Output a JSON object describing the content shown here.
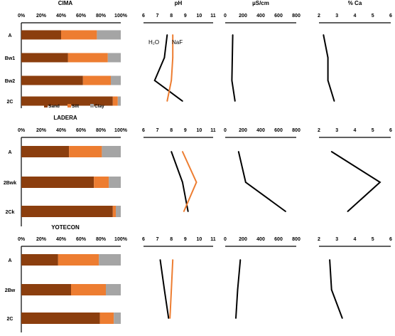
{
  "chart_data": [
    {
      "type": "bar",
      "orientation": "horizontal",
      "stacked": true,
      "panel": "texture",
      "site": 0,
      "title": "CIMA",
      "xlim": [
        0,
        100
      ],
      "xticks": [
        "0%",
        "20%",
        "40%",
        "60%",
        "80%",
        "100%"
      ],
      "categories": [
        "A",
        "Bw1",
        "Bw2",
        "2C"
      ],
      "series": [
        {
          "name": "Sand",
          "color": "#8B3E0E",
          "values": [
            40,
            47,
            62,
            92
          ]
        },
        {
          "name": "Silt",
          "color": "#ED7D31",
          "values": [
            36,
            40,
            28,
            5
          ]
        },
        {
          "name": "Clay",
          "color": "#A5A5A5",
          "values": [
            24,
            13,
            10,
            3
          ]
        }
      ],
      "legend": {
        "position": "bottom",
        "labels": [
          "Sand",
          "Silt",
          "Clay"
        ]
      }
    },
    {
      "type": "line",
      "panel": "pH",
      "site": 0,
      "title": "pH",
      "xlim": [
        6,
        11
      ],
      "xticks": [
        "6",
        "7",
        "8",
        "9",
        "10",
        "11"
      ],
      "categories": [
        "A",
        "Bw1",
        "Bw2",
        "2C"
      ],
      "series": [
        {
          "name": "H₂O",
          "color": "#000000",
          "values": [
            7.7,
            7.5,
            6.8,
            8.8
          ]
        },
        {
          "name": "NaF",
          "color": "#ED7D31",
          "values": [
            8.1,
            8.1,
            8.0,
            7.7
          ]
        }
      ]
    },
    {
      "type": "line",
      "panel": "EC",
      "site": 0,
      "title": "µS/cm",
      "xlim": [
        0,
        800
      ],
      "xticks": [
        "0",
        "200",
        "400",
        "600",
        "800"
      ],
      "categories": [
        "A",
        "Bw1",
        "Bw2",
        "2C"
      ],
      "series": [
        {
          "color": "#000000",
          "values": [
            85,
            80,
            75,
            110
          ]
        }
      ]
    },
    {
      "type": "line",
      "panel": "Ca",
      "site": 0,
      "title": "% Ca",
      "xlim": [
        2,
        6
      ],
      "xticks": [
        "2",
        "3",
        "4",
        "5",
        "6"
      ],
      "categories": [
        "A",
        "Bw1",
        "Bw2",
        "2C"
      ],
      "series": [
        {
          "color": "#000000",
          "values": [
            2.25,
            2.5,
            2.5,
            2.85
          ]
        }
      ]
    },
    {
      "type": "bar",
      "orientation": "horizontal",
      "stacked": true,
      "panel": "texture",
      "site": 1,
      "title": "LADERA",
      "xlim": [
        0,
        100
      ],
      "xticks": [
        "0%",
        "20%",
        "40%",
        "60%",
        "80%",
        "100%"
      ],
      "categories": [
        "A",
        "2Bwk",
        "2Ck"
      ],
      "series": [
        {
          "name": "Sand",
          "color": "#8B3E0E",
          "values": [
            48,
            73,
            92
          ]
        },
        {
          "name": "Silt",
          "color": "#ED7D31",
          "values": [
            33,
            15,
            3
          ]
        },
        {
          "name": "Clay",
          "color": "#A5A5A5",
          "values": [
            19,
            12,
            5
          ]
        }
      ]
    },
    {
      "type": "line",
      "panel": "pH",
      "site": 1,
      "xlim": [
        6,
        11
      ],
      "xticks": [
        "6",
        "7",
        "8",
        "9",
        "10",
        "11"
      ],
      "categories": [
        "A",
        "2Bwk",
        "2Ck"
      ],
      "series": [
        {
          "color": "#000000",
          "values": [
            8.0,
            8.8,
            9.2
          ]
        },
        {
          "color": "#ED7D31",
          "values": [
            8.8,
            9.8,
            8.9
          ]
        }
      ]
    },
    {
      "type": "line",
      "panel": "EC",
      "site": 1,
      "xlim": [
        0,
        800
      ],
      "xticks": [
        "0",
        "200",
        "400",
        "600",
        "800"
      ],
      "categories": [
        "A",
        "2Bwk",
        "2Ck"
      ],
      "series": [
        {
          "color": "#000000",
          "values": [
            150,
            230,
            680
          ]
        }
      ]
    },
    {
      "type": "line",
      "panel": "Ca",
      "site": 1,
      "xlim": [
        2,
        6
      ],
      "xticks": [
        "2",
        "3",
        "4",
        "5",
        "6"
      ],
      "categories": [
        "A",
        "2Bwk",
        "2Ck"
      ],
      "series": [
        {
          "color": "#000000",
          "values": [
            2.7,
            5.4,
            3.6
          ]
        }
      ]
    },
    {
      "type": "bar",
      "orientation": "horizontal",
      "stacked": true,
      "panel": "texture",
      "site": 2,
      "title": "YOTECON",
      "xlim": [
        0,
        100
      ],
      "xticks": [
        "0%",
        "20%",
        "40%",
        "60%",
        "80%",
        "100%"
      ],
      "categories": [
        "A",
        "2Bw",
        "2C"
      ],
      "series": [
        {
          "name": "Sand",
          "color": "#8B3E0E",
          "values": [
            37,
            50,
            79
          ]
        },
        {
          "name": "Silt",
          "color": "#ED7D31",
          "values": [
            41,
            35,
            14
          ]
        },
        {
          "name": "Clay",
          "color": "#A5A5A5",
          "values": [
            22,
            15,
            7
          ]
        }
      ]
    },
    {
      "type": "line",
      "panel": "pH",
      "site": 2,
      "xlim": [
        6,
        11
      ],
      "xticks": [
        "6",
        "7",
        "8",
        "9",
        "10",
        "11"
      ],
      "categories": [
        "A",
        "2Bw",
        "2C"
      ],
      "series": [
        {
          "color": "#000000",
          "values": [
            7.2,
            7.5,
            7.8
          ]
        },
        {
          "color": "#ED7D31",
          "values": [
            8.1,
            8.0,
            7.9
          ]
        }
      ]
    },
    {
      "type": "line",
      "panel": "EC",
      "site": 2,
      "xlim": [
        0,
        800
      ],
      "xticks": [
        "0",
        "200",
        "400",
        "600",
        "800"
      ],
      "categories": [
        "A",
        "2Bw",
        "2C"
      ],
      "series": [
        {
          "color": "#000000",
          "values": [
            170,
            140,
            120
          ]
        }
      ]
    },
    {
      "type": "line",
      "panel": "Ca",
      "site": 2,
      "xlim": [
        2,
        6
      ],
      "xticks": [
        "2",
        "3",
        "4",
        "5",
        "6"
      ],
      "categories": [
        "A",
        "2Bw",
        "2C"
      ],
      "series": [
        {
          "color": "#000000",
          "values": [
            2.6,
            2.7,
            3.3
          ]
        }
      ]
    }
  ]
}
